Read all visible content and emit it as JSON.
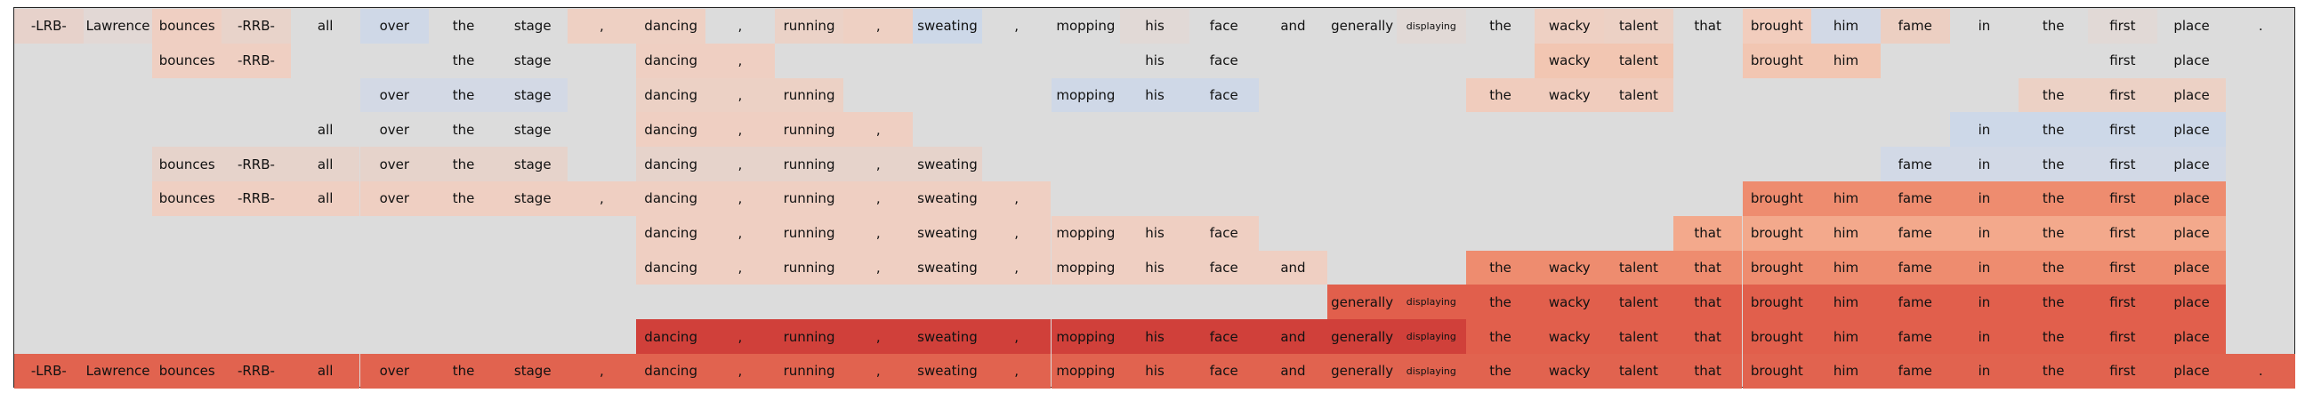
{
  "tokens": [
    "-LRB-",
    "Lawrence",
    "bounces",
    "-RRB-",
    "all",
    "over",
    "the",
    "stage",
    ",",
    "dancing",
    ",",
    "running",
    ",",
    "sweating",
    ",",
    "mopping",
    "his",
    "face",
    "and",
    "generally",
    "displaying",
    "the",
    "wacky",
    "talent",
    "that",
    "brought",
    "him",
    "fame",
    "in",
    "the",
    "first",
    "place",
    "."
  ],
  "legend_colors": {
    "background": "#dcdcdc",
    "light_red": "#f4c7b2",
    "med_red": "#ef8c6f",
    "dark_red": "#d0403a",
    "light_blue": "#cdd8e8"
  },
  "rows": [
    {
      "words": [
        0,
        1,
        2,
        3,
        4,
        5,
        6,
        7,
        8,
        9,
        10,
        11,
        12,
        13,
        14,
        15,
        16,
        17,
        18,
        19,
        20,
        21,
        22,
        23,
        24,
        25,
        26,
        27,
        28,
        29,
        30,
        31,
        32
      ],
      "colors": {
        "0": "#e7d2cb",
        "1": "#e2d8d5",
        "2": "#efcfc2",
        "3": "#e8d3ca",
        "5": "#cfd8e7",
        "8": "#eed0c3",
        "9": "#eed0c3",
        "11": "#ebd2c7",
        "12": "#eed0c3",
        "13": "#cdd8e8",
        "16": "#e1d9d6",
        "20": "#e1d9d6",
        "22": "#eed0c3",
        "23": "#ecd1c5",
        "25": "#f2cdbd",
        "26": "#d2d9e6",
        "27": "#eccfc2",
        "30": "#e1d9d6"
      }
    },
    {
      "words": [
        2,
        3,
        6,
        7,
        9,
        10,
        16,
        17,
        22,
        23,
        25,
        26,
        30,
        31
      ],
      "colors": {
        "2": "#efcfc2",
        "3": "#efcfc2",
        "9": "#efcfc2",
        "10": "#efcfc2",
        "22": "#f2c6b2",
        "23": "#f2c6b2",
        "25": "#f2c6b2",
        "26": "#f2c6b2"
      }
    },
    {
      "words": [
        5,
        6,
        7,
        9,
        10,
        11,
        15,
        16,
        17,
        21,
        22,
        23,
        29,
        30,
        31
      ],
      "colors": {
        "5": "#d3d9e5",
        "6": "#d3d9e5",
        "7": "#d3d9e5",
        "9": "#ecd1c5",
        "10": "#ecd1c5",
        "11": "#ecd1c5",
        "15": "#cfd8e7",
        "16": "#cfd8e7",
        "17": "#cfd8e7",
        "21": "#f0ccbd",
        "22": "#f0ccbd",
        "23": "#f0ccbd",
        "29": "#ecd1c5",
        "30": "#ecd1c5",
        "31": "#ecd1c5"
      }
    },
    {
      "words": [
        4,
        5,
        6,
        7,
        9,
        10,
        11,
        12,
        28,
        29,
        30,
        31
      ],
      "colors": {
        "9": "#efcfc2",
        "10": "#efcfc2",
        "11": "#efcfc2",
        "12": "#efcfc2",
        "28": "#cdd8e8",
        "29": "#cdd8e8",
        "30": "#cdd8e8",
        "31": "#cdd8e8"
      }
    },
    {
      "words": [
        2,
        3,
        4,
        5,
        6,
        7,
        9,
        10,
        11,
        12,
        13,
        27,
        28,
        29,
        30,
        31
      ],
      "colors": {
        "2": "#e6d3cb",
        "3": "#e6d3cb",
        "4": "#e6d3cb",
        "5": "#e6d3cb",
        "6": "#e6d3cb",
        "7": "#e6d3cb",
        "9": "#e6d3cb",
        "10": "#e6d3cb",
        "11": "#e6d3cb",
        "12": "#e6d3cb",
        "13": "#e6d3cb",
        "27": "#d2d9e6",
        "28": "#d2d9e6",
        "29": "#d2d9e6",
        "30": "#d2d9e6",
        "31": "#d2d9e6"
      }
    },
    {
      "words": [
        2,
        3,
        4,
        5,
        6,
        7,
        8,
        9,
        10,
        11,
        12,
        13,
        14,
        25,
        26,
        27,
        28,
        29,
        30,
        31
      ],
      "colors": {
        "2": "#efcfc2",
        "3": "#efcfc2",
        "4": "#efcfc2",
        "5": "#efcfc2",
        "6": "#efcfc2",
        "7": "#efcfc2",
        "8": "#efcfc2",
        "9": "#efcfc2",
        "10": "#efcfc2",
        "11": "#efcfc2",
        "12": "#efcfc2",
        "13": "#efcfc2",
        "14": "#efcfc2",
        "25": "#ee8c6f",
        "26": "#ee8c6f",
        "27": "#ee8c6f",
        "28": "#ee8c6f",
        "29": "#ee8c6f",
        "30": "#ee8c6f",
        "31": "#ee8c6f"
      }
    },
    {
      "words": [
        9,
        10,
        11,
        12,
        13,
        14,
        15,
        16,
        17,
        24,
        25,
        26,
        27,
        28,
        29,
        30,
        31
      ],
      "colors": {
        "9": "#efcfc2",
        "10": "#efcfc2",
        "11": "#efcfc2",
        "12": "#efcfc2",
        "13": "#efcfc2",
        "14": "#efcfc2",
        "15": "#efcfc2",
        "16": "#efcfc2",
        "17": "#efcfc2",
        "24": "#f3a98c",
        "25": "#f3a98c",
        "26": "#f3a98c",
        "27": "#f3a98c",
        "28": "#f3a98c",
        "29": "#f3a98c",
        "30": "#f3a98c",
        "31": "#f3a98c"
      }
    },
    {
      "words": [
        9,
        10,
        11,
        12,
        13,
        14,
        15,
        16,
        17,
        18,
        21,
        22,
        23,
        24,
        25,
        26,
        27,
        28,
        29,
        30,
        31
      ],
      "colors": {
        "9": "#efcfc2",
        "10": "#efcfc2",
        "11": "#efcfc2",
        "12": "#efcfc2",
        "13": "#efcfc2",
        "14": "#efcfc2",
        "15": "#efcfc2",
        "16": "#efcfc2",
        "17": "#efcfc2",
        "18": "#efcfc2",
        "21": "#ee8c6f",
        "22": "#ee8c6f",
        "23": "#ee8c6f",
        "24": "#ee8c6f",
        "25": "#ee8c6f",
        "26": "#ee8c6f",
        "27": "#ee8c6f",
        "28": "#ee8c6f",
        "29": "#ee8c6f",
        "30": "#ee8c6f",
        "31": "#ee8c6f"
      }
    },
    {
      "words": [
        19,
        20,
        21,
        22,
        23,
        24,
        25,
        26,
        27,
        28,
        29,
        30,
        31
      ],
      "colors": {
        "19": "#e15f4c",
        "20": "#e15f4c",
        "21": "#e15f4c",
        "22": "#e15f4c",
        "23": "#e15f4c",
        "24": "#e15f4c",
        "25": "#e15f4c",
        "26": "#e15f4c",
        "27": "#e15f4c",
        "28": "#e15f4c",
        "29": "#e15f4c",
        "30": "#e15f4c",
        "31": "#e15f4c"
      }
    },
    {
      "words": [
        9,
        10,
        11,
        12,
        13,
        14,
        15,
        16,
        17,
        18,
        19,
        20,
        21,
        22,
        23,
        24,
        25,
        26,
        27,
        28,
        29,
        30,
        31
      ],
      "colors": {
        "9": "#d0403a",
        "10": "#d0403a",
        "11": "#d0403a",
        "12": "#d0403a",
        "13": "#d0403a",
        "14": "#d0403a",
        "15": "#d0403a",
        "16": "#d0403a",
        "17": "#d0403a",
        "18": "#d0403a",
        "19": "#d0403a",
        "20": "#d0403a",
        "21": "#e15f4c",
        "22": "#e15f4c",
        "23": "#e15f4c",
        "24": "#e15f4c",
        "25": "#e15f4c",
        "26": "#e15f4c",
        "27": "#e15f4c",
        "28": "#e15f4c",
        "29": "#e15f4c",
        "30": "#e15f4c",
        "31": "#e15f4c"
      }
    },
    {
      "words": [
        0,
        1,
        2,
        3,
        4,
        5,
        6,
        7,
        8,
        9,
        10,
        11,
        12,
        13,
        14,
        15,
        16,
        17,
        18,
        19,
        20,
        21,
        22,
        23,
        24,
        25,
        26,
        27,
        28,
        29,
        30,
        31,
        32
      ],
      "colors": {
        "0": "#e1634f",
        "1": "#e1634f",
        "2": "#e1634f",
        "3": "#e1634f",
        "4": "#e1634f",
        "5": "#e1634f",
        "6": "#e1634f",
        "7": "#e1634f",
        "8": "#e1634f",
        "9": "#e1634f",
        "10": "#e1634f",
        "11": "#e1634f",
        "12": "#e1634f",
        "13": "#e1634f",
        "14": "#e1634f",
        "15": "#e1634f",
        "16": "#e1634f",
        "17": "#e1634f",
        "18": "#e1634f",
        "19": "#e1634f",
        "20": "#e1634f",
        "21": "#e1634f",
        "22": "#e1634f",
        "23": "#e1634f",
        "24": "#e1634f",
        "25": "#e1634f",
        "26": "#e1634f",
        "27": "#e1634f",
        "28": "#e1634f",
        "29": "#e1634f",
        "30": "#e1634f",
        "31": "#e1634f",
        "32": "#e1634f"
      }
    }
  ]
}
